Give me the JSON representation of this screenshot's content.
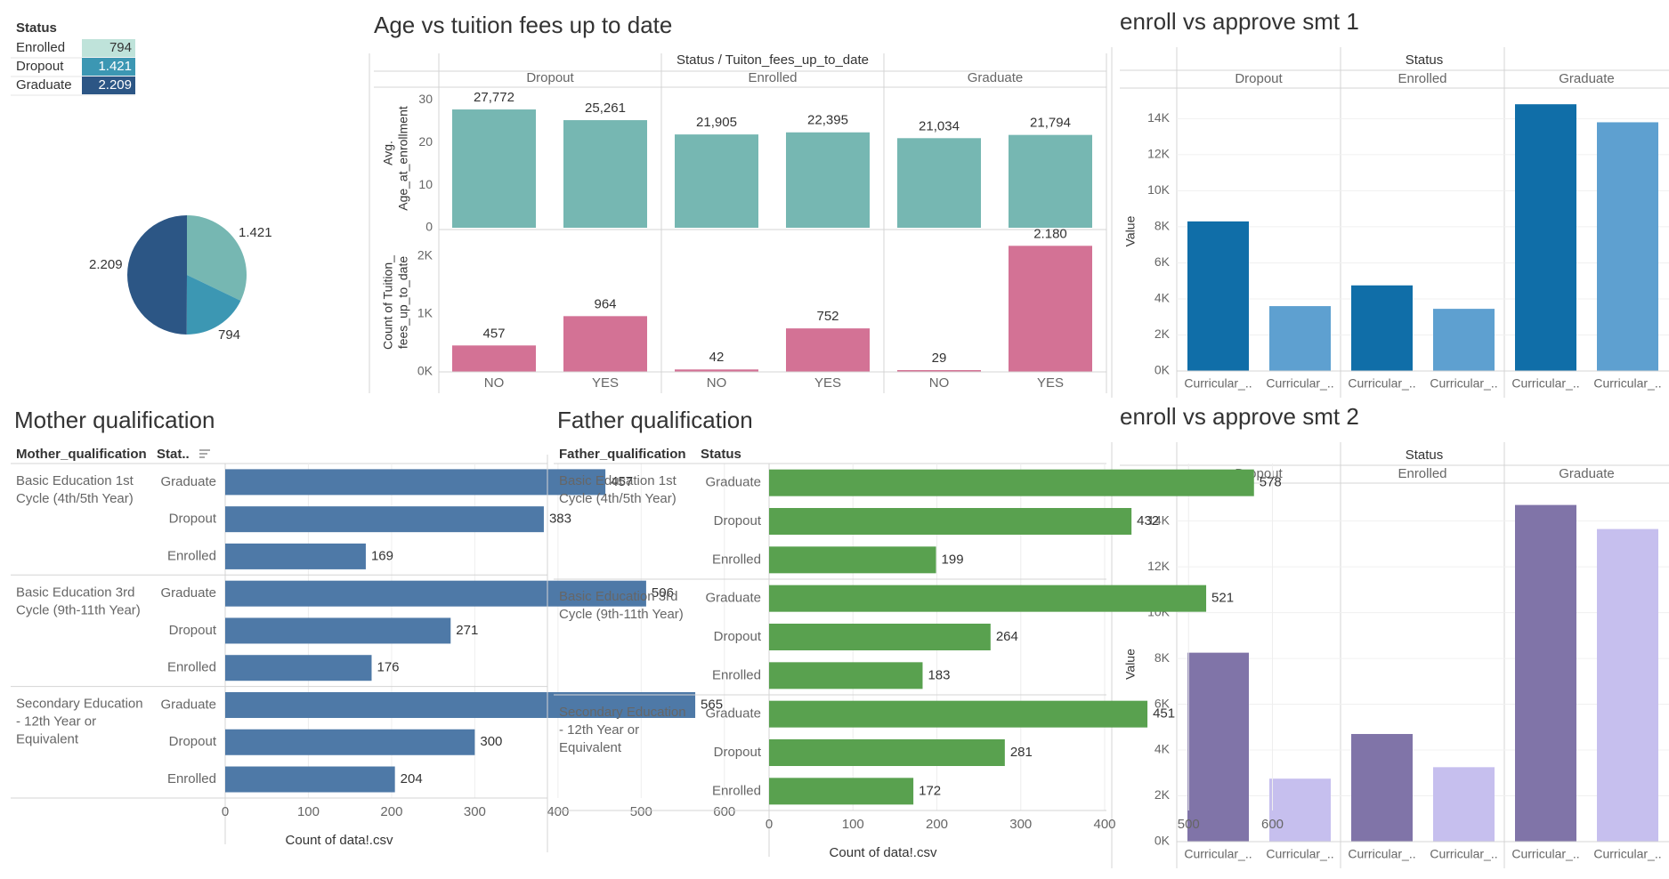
{
  "colors": {
    "teal": "#76b7b2",
    "pink": "#d37295",
    "blue_dark": "#106ea8",
    "blue_light": "#5ea0d0",
    "purple_dark": "#8074a8",
    "purple_light": "#c6bfee",
    "mother_bar": "#4e79a7",
    "father_bar": "#59a14f",
    "legend_enrolled": "#bfe3da",
    "legend_dropout": "#3c97b3",
    "legend_graduate": "#2c5685",
    "pie_enrolled": "#3c97b3",
    "pie_dropout": "#76b7b2",
    "pie_graduate": "#2c5685"
  },
  "status_legend": {
    "title": "Status",
    "rows": [
      {
        "label": "Enrolled",
        "value": "794"
      },
      {
        "label": "Dropout",
        "value": "1.421"
      },
      {
        "label": "Graduate",
        "value": "2.209"
      }
    ]
  },
  "pie": {
    "labels": {
      "dropout": "1.421",
      "enrolled": "794",
      "graduate": "2.209"
    }
  },
  "age_chart": {
    "title": "Age vs tuition fees up to date",
    "header": "Status / Tuiton_fees_up_to_date",
    "groups": [
      "Dropout",
      "Enrolled",
      "Graduate"
    ],
    "x_labels": [
      "NO",
      "YES"
    ],
    "top_axis_label_1": "Avg.",
    "top_axis_label_2": "Age_at_enrollment",
    "top_ticks": [
      "30",
      "20",
      "10",
      "0"
    ],
    "bottom_axis_label_1": "Count of Tuition_",
    "bottom_axis_label_2": "fees_up_to_date",
    "bottom_ticks": [
      "2K",
      "1K",
      "0K"
    ]
  },
  "smt1": {
    "title": "enroll vs approve smt 1",
    "header": "Status",
    "groups": [
      "Dropout",
      "Enrolled",
      "Graduate"
    ],
    "ylabel": "Value",
    "ticks": [
      "14K",
      "12K",
      "10K",
      "8K",
      "6K",
      "4K",
      "2K",
      "0K"
    ],
    "xlabel": "Curricular_.."
  },
  "smt2": {
    "title": "enroll vs approve smt 2",
    "header": "Status",
    "groups": [
      "Dropout",
      "Enrolled",
      "Graduate"
    ],
    "ylabel": "Value",
    "ticks": [
      "14K",
      "12K",
      "10K",
      "8K",
      "6K",
      "4K",
      "2K",
      "0K"
    ],
    "xlabel": "Curricular_.."
  },
  "mother": {
    "title": "Mother qualification",
    "col1": "Mother_qualification",
    "col2": "Stat..",
    "xlabel": "Count of data!.csv",
    "ticks": [
      "0",
      "100",
      "200",
      "300",
      "400",
      "500",
      "600"
    ],
    "cat_lines": [
      [
        "Basic Education 1st",
        "Cycle (4th/5th Year)"
      ],
      [
        "Basic Education 3rd",
        "Cycle (9th-11th Year)"
      ],
      [
        "Secondary Education",
        "- 12th Year or",
        "Equivalent"
      ]
    ],
    "sub": [
      "Graduate",
      "Dropout",
      "Enrolled"
    ]
  },
  "father": {
    "title": "Father qualification",
    "col1": "Father_qualification",
    "col2": "Status",
    "xlabel": "Count of data!.csv",
    "ticks": [
      "0",
      "100",
      "200",
      "300",
      "400",
      "500",
      "600"
    ],
    "cat_lines": [
      [
        "Basic Education 1st",
        "Cycle (4th/5th Year)"
      ],
      [
        "Basic Education 3rd",
        "Cycle (9th-11th Year)"
      ],
      [
        "Secondary Education",
        "- 12th Year or",
        "Equivalent"
      ]
    ],
    "sub": [
      "Graduate",
      "Dropout",
      "Enrolled"
    ]
  },
  "chart_data": [
    {
      "type": "pie",
      "categories": [
        "Dropout",
        "Enrolled",
        "Graduate"
      ],
      "values": [
        1421,
        794,
        2209
      ]
    },
    {
      "type": "bar",
      "title": "Age vs tuition fees up to date",
      "ylabel": "Avg. Age_at_enrollment",
      "categories": [
        "Dropout NO",
        "Dropout YES",
        "Enrolled NO",
        "Enrolled YES",
        "Graduate NO",
        "Graduate YES"
      ],
      "values": [
        27.772,
        25.261,
        21.905,
        22.395,
        21.034,
        21.794
      ],
      "value_labels": [
        "27,772",
        "25,261",
        "21,905",
        "22,395",
        "21,034",
        "21,794"
      ],
      "ylim": [
        0,
        33
      ]
    },
    {
      "type": "bar",
      "ylabel": "Count of Tuition_fees_up_to_date",
      "categories": [
        "Dropout NO",
        "Dropout YES",
        "Enrolled NO",
        "Enrolled YES",
        "Graduate NO",
        "Graduate YES"
      ],
      "values": [
        457,
        964,
        42,
        752,
        29,
        2180
      ],
      "value_labels": [
        "457",
        "964",
        "42",
        "752",
        "29",
        "2.180"
      ],
      "ylim": [
        0,
        2400
      ]
    },
    {
      "type": "bar",
      "title": "enroll vs approve smt 1",
      "ylabel": "Value",
      "categories": [
        "Dropout",
        "Dropout",
        "Enrolled",
        "Enrolled",
        "Graduate",
        "Graduate"
      ],
      "values": [
        8300,
        3600,
        4750,
        3450,
        14800,
        13800
      ],
      "ylim": [
        0,
        15500
      ]
    },
    {
      "type": "bar",
      "title": "enroll vs approve smt 2",
      "ylabel": "Value",
      "categories": [
        "Dropout",
        "Dropout",
        "Enrolled",
        "Enrolled",
        "Graduate",
        "Graduate"
      ],
      "values": [
        8250,
        2750,
        4700,
        3250,
        14700,
        13650
      ],
      "ylim": [
        0,
        15500
      ]
    },
    {
      "type": "bar",
      "title": "Mother qualification",
      "xlabel": "Count of data!.csv",
      "categories": [
        "Basic Education 1st Cycle (4th/5th Year)",
        "Basic Education 3rd Cycle (9th-11th Year)",
        "Secondary Education - 12th Year or Equivalent"
      ],
      "series": [
        {
          "name": "Graduate",
          "values": [
            457,
            506,
            565
          ]
        },
        {
          "name": "Dropout",
          "values": [
            383,
            271,
            300
          ]
        },
        {
          "name": "Enrolled",
          "values": [
            169,
            176,
            204
          ]
        }
      ],
      "xlim": [
        0,
        660
      ]
    },
    {
      "type": "bar",
      "title": "Father qualification",
      "xlabel": "Count of data!.csv",
      "categories": [
        "Basic Education 1st Cycle (4th/5th Year)",
        "Basic Education 3rd Cycle (9th-11th Year)",
        "Secondary Education - 12th Year or Equivalent"
      ],
      "series": [
        {
          "name": "Graduate",
          "values": [
            578,
            521,
            451
          ]
        },
        {
          "name": "Dropout",
          "values": [
            432,
            264,
            281
          ]
        },
        {
          "name": "Enrolled",
          "values": [
            199,
            183,
            172
          ]
        }
      ],
      "xlim": [
        0,
        660
      ]
    }
  ]
}
